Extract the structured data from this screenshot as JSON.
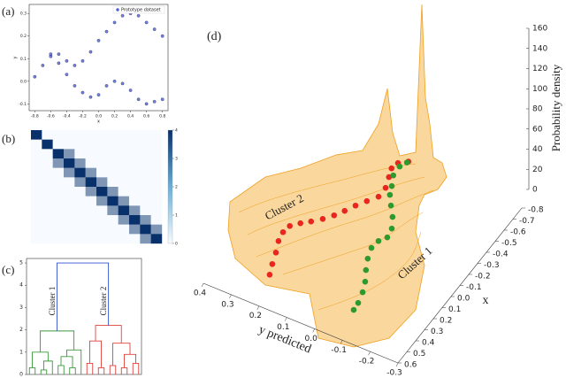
{
  "chart_data": [
    {
      "type": "scatter",
      "label": "(a)",
      "x_label": "x",
      "y_label": "y",
      "xlim": [
        -0.87,
        0.87
      ],
      "ylim": [
        -0.13,
        0.34
      ],
      "xticks": [
        -0.8,
        -0.6,
        -0.4,
        -0.2,
        {
          "value": 0,
          "label": "0.0"
        },
        0.2,
        0.4,
        0.6,
        0.8
      ],
      "yticks": [
        -0.1,
        {
          "value": 0,
          "label": "0.0"
        },
        0.1,
        0.2,
        0.3
      ],
      "series": [
        {
          "name": "Prototype dataset",
          "color": "#4c5fd5",
          "x": [
            -0.8,
            -0.7,
            -0.6,
            -0.5,
            -0.4,
            -0.3,
            -0.2,
            -0.1,
            0.0,
            0.1,
            0.2,
            0.3,
            0.4,
            0.5,
            0.6,
            0.7,
            0.8,
            -0.6,
            -0.5,
            -0.4,
            -0.3,
            -0.2,
            -0.1,
            0.0,
            0.1,
            0.2,
            0.3,
            0.4,
            0.5,
            0.6,
            0.7,
            0.8
          ],
          "y": [
            0.02,
            0.07,
            0.11,
            0.12,
            0.09,
            0.07,
            0.09,
            0.13,
            0.18,
            0.22,
            0.26,
            0.29,
            0.3,
            0.29,
            0.26,
            0.23,
            0.2,
            0.12,
            0.08,
            0.03,
            -0.02,
            -0.05,
            -0.07,
            -0.06,
            -0.02,
            0.0,
            -0.01,
            -0.04,
            -0.08,
            -0.1,
            -0.09,
            -0.08
          ]
        }
      ]
    },
    {
      "type": "heatmap",
      "label": "(b)",
      "zlim": [
        0,
        4
      ],
      "colorbar_ticks": [
        0,
        1,
        2,
        3,
        4
      ],
      "matrix": [
        [
          4,
          0,
          0,
          0,
          0,
          0,
          0,
          0,
          0,
          0,
          0,
          0
        ],
        [
          0,
          4,
          0,
          0,
          0,
          0,
          0,
          0,
          0,
          0,
          0,
          0
        ],
        [
          0,
          0,
          4,
          2,
          0,
          0,
          0,
          0,
          0,
          0,
          0,
          0
        ],
        [
          0,
          0,
          2,
          4,
          2,
          0,
          0,
          0,
          0,
          0,
          0,
          0
        ],
        [
          0,
          0,
          0,
          2,
          4,
          2,
          0,
          0,
          0,
          0,
          0,
          0
        ],
        [
          0,
          0,
          0,
          0,
          2,
          4,
          2,
          0,
          0,
          0,
          0,
          0
        ],
        [
          0,
          0,
          0,
          0,
          0,
          2,
          4,
          2,
          0,
          0,
          0,
          0
        ],
        [
          0,
          0,
          0,
          0,
          0,
          0,
          2,
          4,
          2,
          0,
          0,
          0
        ],
        [
          0,
          0,
          0,
          0,
          0,
          0,
          0,
          2,
          4,
          2,
          0,
          0
        ],
        [
          0,
          0,
          0,
          0,
          0,
          0,
          0,
          0,
          2,
          4,
          2,
          0
        ],
        [
          0,
          0,
          0,
          0,
          0,
          0,
          0,
          0,
          0,
          2,
          4,
          2
        ],
        [
          0,
          0,
          0,
          0,
          0,
          0,
          0,
          0,
          0,
          0,
          2,
          4
        ]
      ]
    },
    {
      "type": "dendrogram",
      "label": "(c)",
      "xlim": [
        -0.5,
        19.5
      ],
      "ylim": [
        0,
        5.2
      ],
      "yticks": [
        0,
        1,
        2,
        3,
        4,
        5
      ],
      "annotations": [
        "Cluster 1",
        "Cluster 2"
      ],
      "links": [
        [
          0,
          1,
          0,
          0,
          0.3
        ],
        [
          2,
          3,
          0,
          0,
          0.2
        ],
        [
          2.5,
          4,
          0.2,
          0,
          0.6
        ],
        [
          0.5,
          3.25,
          0.3,
          0.6,
          1.0
        ],
        [
          5,
          6,
          0,
          0,
          0.4
        ],
        [
          7,
          8,
          0,
          0,
          0.3
        ],
        [
          5.5,
          7.5,
          0.4,
          0.3,
          0.8
        ],
        [
          6.5,
          9,
          0.8,
          0,
          1.1
        ],
        [
          1.875,
          7.75,
          1.0,
          1.1,
          1.95
        ],
        [
          10,
          11,
          0,
          0,
          0.5
        ],
        [
          12,
          13,
          0,
          0,
          0.3
        ],
        [
          10.5,
          12.5,
          0.5,
          0.3,
          1.5
        ],
        [
          14,
          15,
          0,
          0,
          0.4
        ],
        [
          16,
          17,
          0,
          0,
          0.3
        ],
        [
          18,
          19,
          0,
          0,
          0.5
        ],
        [
          16.5,
          18.5,
          0.3,
          0.5,
          0.9
        ],
        [
          14.5,
          17.5,
          0.4,
          0.9,
          1.4
        ],
        [
          11.5,
          16,
          1.5,
          1.4,
          2.2
        ],
        [
          4.8125,
          13.75,
          1.95,
          2.2,
          5.0
        ]
      ],
      "colors": [
        "#3a9a3a",
        "#3a9a3a",
        "#3a9a3a",
        "#3a9a3a",
        "#3a9a3a",
        "#3a9a3a",
        "#3a9a3a",
        "#3a9a3a",
        "#3a9a3a",
        "#e0403a",
        "#e0403a",
        "#e0403a",
        "#e0403a",
        "#e0403a",
        "#e0403a",
        "#e0403a",
        "#e0403a",
        "#e0403a",
        "#3050d0"
      ]
    },
    {
      "type": "surface3d",
      "label": "(d)",
      "x_label": "x",
      "y_label": "y predicted",
      "z_label": "Probability density",
      "xlim": [
        -0.8,
        0.6
      ],
      "ylim": [
        -0.3,
        0.4
      ],
      "zlim": [
        0,
        160
      ],
      "xticks": [
        -0.8,
        -0.7,
        -0.6,
        -0.5,
        -0.4,
        -0.3,
        -0.2,
        -0.1,
        {
          "value": 0,
          "label": "0.0"
        },
        0.1,
        0.2,
        0.3,
        0.4,
        0.5,
        0.6
      ],
      "yticks": [
        0.4,
        0.3,
        0.2,
        0.1,
        {
          "value": 0,
          "label": "0.0"
        },
        -0.1,
        -0.2,
        -0.3
      ],
      "zticks": [
        0,
        20,
        40,
        60,
        80,
        100,
        120,
        140,
        160
      ],
      "series": [
        {
          "name": "Cluster 2",
          "color": "#e8261e",
          "x": [
            0.357,
            0.277,
            0.189,
            0.103,
            0.03,
            -0.031,
            -0.079,
            -0.121,
            -0.171,
            -0.227,
            -0.287,
            -0.353,
            -0.415,
            -0.478,
            -0.558,
            -0.64,
            -0.707,
            -0.761,
            -0.8
          ],
          "y_predicted": [
            0.239,
            0.255,
            0.27,
            0.288,
            0.295,
            0.29,
            0.267,
            0.242,
            0.216,
            0.193,
            0.174,
            0.156,
            0.135,
            0.113,
            0.113,
            0.127,
            0.139,
            0.133,
            0.108
          ]
        },
        {
          "name": "Cluster 1",
          "color": "#2e9a2e",
          "x": [
            0.362,
            0.302,
            0.217,
            0.138,
            0.057,
            -0.026,
            -0.109,
            -0.176,
            -0.225,
            -0.298,
            -0.379,
            -0.452,
            -0.522,
            -0.587,
            -0.664,
            -0.742,
            -0.79
          ],
          "y_predicted": [
            -0.065,
            -0.062,
            -0.051,
            -0.035,
            -0.012,
            0.008,
            0.021,
            0.017,
            0.001,
            0.008,
            0.031,
            0.06,
            0.086,
            0.1,
            0.119,
            0.121,
            0.11
          ]
        }
      ]
    }
  ]
}
